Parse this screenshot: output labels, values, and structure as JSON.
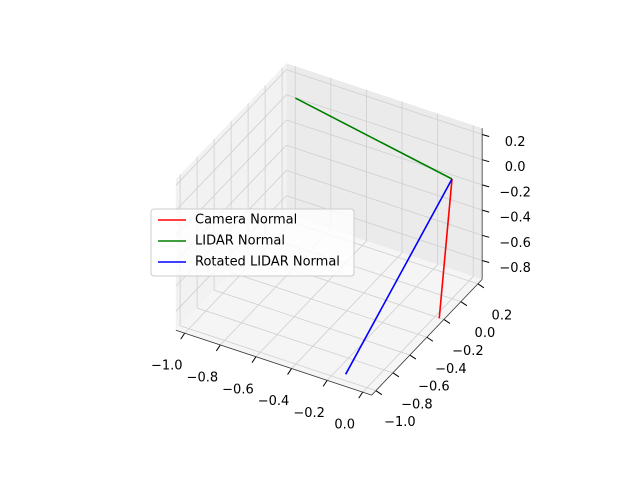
{
  "chart_data": {
    "type": "line3d",
    "series": [
      {
        "name": "Camera Normal",
        "color": "#ff0000",
        "x": [
          0,
          0
        ],
        "y": [
          0,
          -0.15
        ],
        "z": [
          0,
          -1.0
        ]
      },
      {
        "name": "LIDAR Normal",
        "color": "#008000",
        "x": [
          0,
          -0.88
        ],
        "y": [
          0,
          0
        ],
        "z": [
          0,
          0.23
        ]
      },
      {
        "name": "Rotated LIDAR Normal",
        "color": "#0000ff",
        "x": [
          0,
          -0.12
        ],
        "y": [
          0,
          -1.0
        ],
        "z": [
          0,
          -0.9
        ]
      }
    ],
    "xlim": [
      -1.05,
      0.05
    ],
    "ylim": [
      -1.05,
      0.25
    ],
    "zlim": [
      -0.95,
      0.25
    ],
    "xticks": [
      {
        "value": -1.0,
        "label": "−1.0"
      },
      {
        "value": -0.8,
        "label": "−0.8"
      },
      {
        "value": -0.6,
        "label": "−0.6"
      },
      {
        "value": -0.4,
        "label": "−0.4"
      },
      {
        "value": -0.2,
        "label": "−0.2"
      },
      {
        "value": 0.0,
        "label": "0.0"
      }
    ],
    "yticks": [
      {
        "value": -1.0,
        "label": "−1.0"
      },
      {
        "value": -0.8,
        "label": "−0.8"
      },
      {
        "value": -0.6,
        "label": "−0.6"
      },
      {
        "value": -0.4,
        "label": "−0.4"
      },
      {
        "value": -0.2,
        "label": "−0.2"
      },
      {
        "value": 0.0,
        "label": "0.0"
      },
      0.2
    ],
    "zticks": [
      0.2,
      {
        "value": 0.0,
        "label": "0.0"
      },
      {
        "value": -0.2,
        "label": "−0.2"
      },
      {
        "value": -0.4,
        "label": "−0.4"
      },
      {
        "value": -0.6,
        "label": "−0.6"
      },
      {
        "value": -0.8,
        "label": "−0.8"
      }
    ],
    "grid": true,
    "legend": "center left"
  }
}
